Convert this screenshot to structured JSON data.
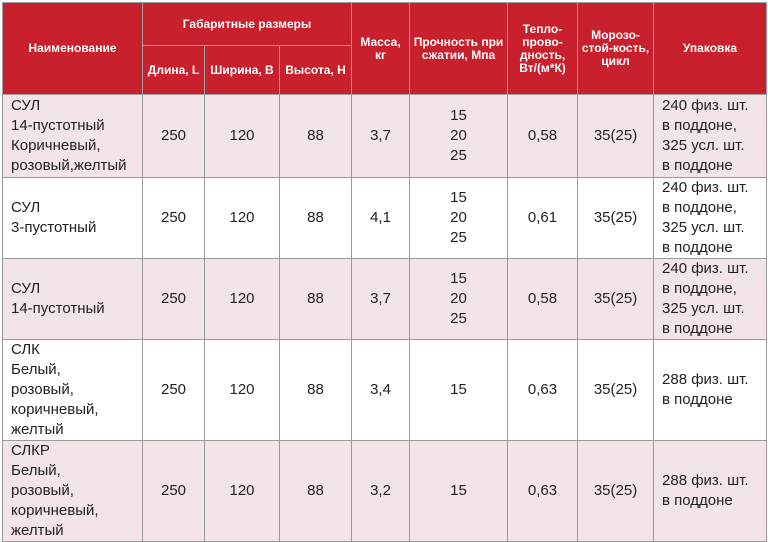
{
  "headers": {
    "name": "Наименование",
    "dimensions": "Габаритные размеры",
    "length": "Длина, L",
    "width": "Ширина, B",
    "height": "Высота, H",
    "mass": "Масса, кг",
    "strength": "Прочность при сжатии, Мпа",
    "conductivity": "Тепло-прово-дность, Вт/(м*К)",
    "frost": "Морозо-стой-кость, цикл",
    "packing": "Упаковка"
  },
  "rows": [
    {
      "name": [
        "СУЛ",
        "14-пустотный",
        "Коричневый,",
        "розовый,желтый"
      ],
      "length": "250",
      "width": "120",
      "height": "88",
      "mass": "3,7",
      "strength": [
        "15",
        "20",
        "25"
      ],
      "conductivity": "0,58",
      "frost": "35(25)",
      "packing": [
        "240 физ. шт.",
        "в поддоне,",
        "325 усл. шт.",
        "в поддоне"
      ]
    },
    {
      "name": [
        "СУЛ",
        "3-пустотный"
      ],
      "length": "250",
      "width": "120",
      "height": "88",
      "mass": "4,1",
      "strength": [
        "15",
        "20",
        "25"
      ],
      "conductivity": "0,61",
      "frost": "35(25)",
      "packing": [
        "240 физ. шт.",
        "в поддоне,",
        "325 усл. шт.",
        "в поддоне"
      ]
    },
    {
      "name": [
        "СУЛ",
        "14-пустотный"
      ],
      "length": "250",
      "width": "120",
      "height": "88",
      "mass": "3,7",
      "strength": [
        "15",
        "20",
        "25"
      ],
      "conductivity": "0,58",
      "frost": "35(25)",
      "packing": [
        "240 физ. шт.",
        "в поддоне,",
        "325 усл. шт.",
        "в поддоне"
      ]
    },
    {
      "name": [
        "СЛК",
        "Белый,",
        "розовый,",
        "коричневый,",
        "желтый"
      ],
      "length": "250",
      "width": "120",
      "height": "88",
      "mass": "3,4",
      "strength": [
        "15"
      ],
      "conductivity": "0,63",
      "frost": "35(25)",
      "packing": [
        "288 физ. шт.",
        "в поддоне"
      ]
    },
    {
      "name": [
        "СЛКР",
        "Белый,",
        "розовый,",
        "коричневый,",
        "желтый"
      ],
      "length": "250",
      "width": "120",
      "height": "88",
      "mass": "3,2",
      "strength": [
        "15"
      ],
      "conductivity": "0,63",
      "frost": "35(25)",
      "packing": [
        "288 физ. шт.",
        "в поддоне"
      ]
    }
  ]
}
